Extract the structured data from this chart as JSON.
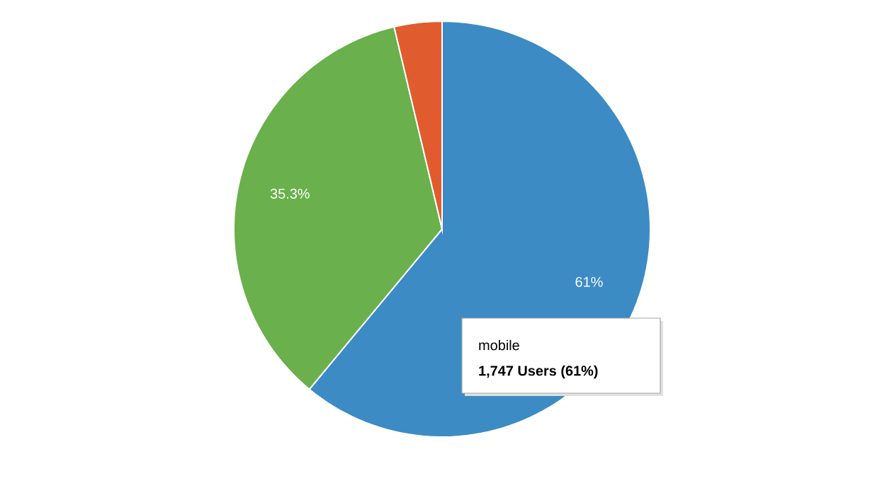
{
  "chart_data": {
    "type": "pie",
    "categories": [
      "mobile",
      null,
      null
    ],
    "values": [
      61,
      35.3,
      3.7
    ],
    "colors": [
      "#3c8bc4",
      "#6ab04c",
      "#e05c2e"
    ],
    "value_labels": [
      "61%",
      "35.3%",
      null
    ],
    "annotations": [
      "1,747 Users (61%)"
    ]
  }
}
